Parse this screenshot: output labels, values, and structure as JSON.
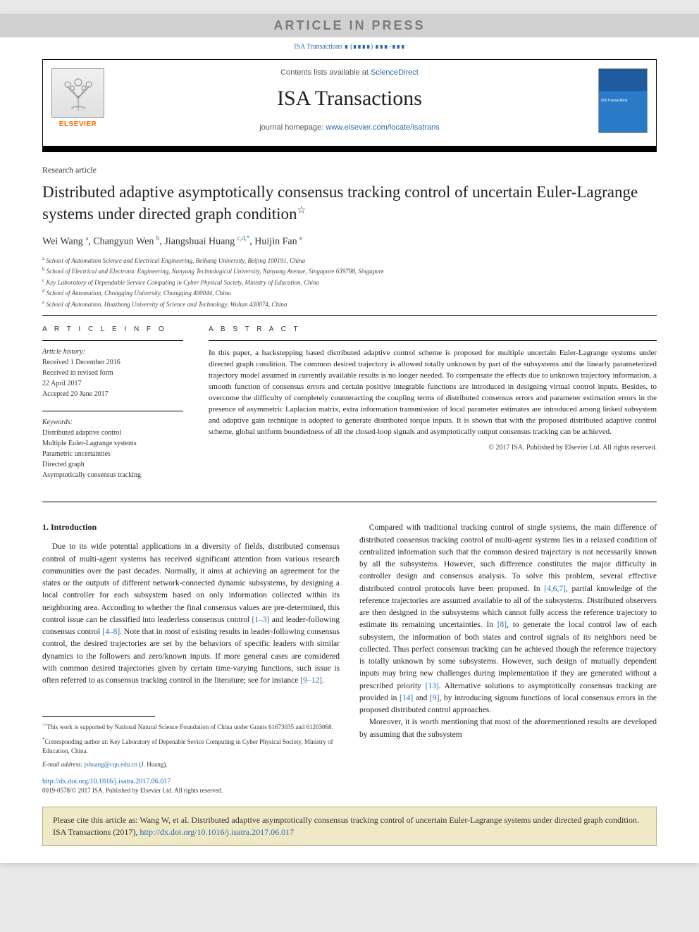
{
  "colors": {
    "link": "#2a6aa8",
    "elsevier_orange": "#ff6a00",
    "press_banner_bg": "#d0d0d0",
    "press_banner_text": "#7a7a7a",
    "cite_box_bg": "#efe9c8",
    "cite_box_border": "#b8b088",
    "cover_top": "#1e5a9e",
    "cover_bottom": "#2a7ac8"
  },
  "press_banner": "ARTICLE IN PRESS",
  "citation_line": "ISA Transactions ∎ (∎∎∎∎) ∎∎∎–∎∎∎",
  "header": {
    "contents_prefix": "Contents lists available at ",
    "contents_link": "ScienceDirect",
    "journal_name": "ISA Transactions",
    "homepage_prefix": "journal homepage: ",
    "homepage_link": "www.elsevier.com/locate/isatrans",
    "elsevier_label": "ELSEVIER",
    "cover_label": "ISA Transactions"
  },
  "article_type": "Research article",
  "title": "Distributed adaptive asymptotically consensus tracking control of uncertain Euler-Lagrange systems under directed graph condition",
  "title_star": "☆",
  "authors_html": "Wei Wang <sup>a</sup>, Changyun Wen <sup>b</sup>, Jiangshuai Huang <sup>c,d,*</sup>, Huijin Fan <sup>e</sup>",
  "affiliations": [
    {
      "sup": "a",
      "text": "School of Automation Science and Electrical Engineering, Beihang University, Beijing 100191, China"
    },
    {
      "sup": "b",
      "text": "School of Electrical and Electronic Engineering, Nanyang Technological University, Nanyang Avenue, Singapore 639798, Singapore"
    },
    {
      "sup": "c",
      "text": "Key Laboratory of Dependable Service Computing in Cyber Physical Society, Ministry of Education, China"
    },
    {
      "sup": "d",
      "text": "School of Automation, Chongqing University, Chongqing 400044, China"
    },
    {
      "sup": "e",
      "text": "School of Automation, Huazhong University of Science and Technology, Wuhan 430074, China"
    }
  ],
  "info": {
    "heading": "A R T I C L E  I N F O",
    "history_label": "Article history:",
    "history": [
      "Received 1 December 2016",
      "Received in revised form",
      "22 April 2017",
      "Accepted 20 June 2017"
    ],
    "keywords_label": "Keywords:",
    "keywords": [
      "Distributed adaptive control",
      "Multiple Euler-Lagrange systems",
      "Parametric uncertainties",
      "Directed graph",
      "Asymptotically consensus tracking"
    ]
  },
  "abstract": {
    "heading": "A B S T R A C T",
    "text": "In this paper, a backstepping based distributed adaptive control scheme is proposed for multiple uncertain Euler-Lagrange systems under directed graph condition. The common desired trajectory is allowed totally unknown by part of the subsystems and the linearly parameterized trajectory model assumed in currently available results is no longer needed. To compensate the effects due to unknown trajectory information, a smooth function of consensus errors and certain positive integrable functions are introduced in designing virtual control inputs. Besides, to overcome the difficulty of completely counteracting the coupling terms of distributed consensus errors and parameter estimation errors in the presence of asymmetric Laplacian matrix, extra information transmission of local parameter estimates are introduced among linked subsystem and adaptive gain technique is adopted to generate distributed torque inputs. It is shown that with the proposed distributed adaptive control scheme, global uniform boundedness of all the closed-loop signals and asymptotically output consensus tracking can be achieved.",
    "copyright": "© 2017 ISA. Published by Elsevier Ltd. All rights reserved."
  },
  "body": {
    "intro_heading": "1. Introduction",
    "left_p1": "Due to its wide potential applications in a diversity of fields, distributed consensus control of multi-agent systems has received significant attention from various research communities over the past decades. Normally, it aims at achieving an agreement for the states or the outputs of different network-connected dynamic subsystems, by designing a local controller for each subsystem based on only information collected within its neighboring area. According to whether the final consensus values are pre-determined, this control issue can be classified into leaderless consensus control ",
    "ref_1_3": "[1–3]",
    "left_p1b": " and leader-following consensus control ",
    "ref_4_8": "[4–8]",
    "left_p1c": ". Note that in most of existing results in leader-following consensus control, the desired trajectories are set by the behaviors of specific leaders with similar dynamics to the followers and zero/known inputs. If more general cases are considered with common desired trajectories given by certain time-varying functions, such issue is often referred to as consensus tracking control in the literature; see for instance ",
    "ref_9_12": "[9–12]",
    "left_p1d": ".",
    "right_p1": "Compared with traditional tracking control of single systems, the main difference of distributed consensus tracking control of multi-agent systems lies in a relaxed condition of centralized information such that the common desired trajectory is not necessarily known by all the subsystems. However, such difference constitutes the major difficulty in controller design and consensus analysis. To solve this problem, several effective distributed control protocols have been proposed. In ",
    "ref_467": "[4,6,7]",
    "right_p1b": ", partial knowledge of the reference trajectories are assumed available to all of the subsystems. Distributed observers are then designed in the subsystems which cannot fully access the reference trajectory to estimate its remaining uncertainties. In ",
    "ref_8": "[8]",
    "right_p1c": ", to generate the local control law of each subsystem, the information of both states and control signals of its neighbors need be collected. Thus perfect consensus tracking can be achieved though the reference trajectory is totally unknown by some subsystems. However, such design of mutually dependent inputs may bring new challenges during implementation if they are generated without a prescribed priority ",
    "ref_13": "[13]",
    "right_p1d": ". Alternative solutions to asymptotically consensus tracking are provided in ",
    "ref_14": "[14]",
    "right_p1e": " and ",
    "ref_9": "[9]",
    "right_p1f": ", by introducing signum functions of local consensus errors in the proposed distributed control approaches.",
    "right_p2": "Moreover, it is worth mentioning that most of the aforementioned results are developed by assuming that the subsystem"
  },
  "footnotes": {
    "fn1_sup": "☆",
    "fn1": "This work is supported by National Natural Science Foundation of China under Grants 61673035 and 61203068.",
    "fn2_sup": "*",
    "fn2": "Corresponding author at: Key Laboratory of Depenable Sevice Computing in Cyber Physical Society, Ministry of Education, China.",
    "fn3_label": "E-mail address: ",
    "fn3_email": "jshuang@cqu.edu.cn",
    "fn3_suffix": " (J. Huang)."
  },
  "doi": {
    "url": "http://dx.doi.org/10.1016/j.isatra.2017.06.017",
    "rights": "0019-0578/© 2017 ISA. Published by Elsevier Ltd. All rights reserved."
  },
  "cite_box": {
    "prefix": "Please cite this article as: Wang W, et al. Distributed adaptive asymptotically consensus tracking control of uncertain Euler-Lagrange systems under directed graph condition. ISA Transactions (2017), ",
    "link": "http://dx.doi.org/10.1016/j.isatra.2017.06.017"
  }
}
